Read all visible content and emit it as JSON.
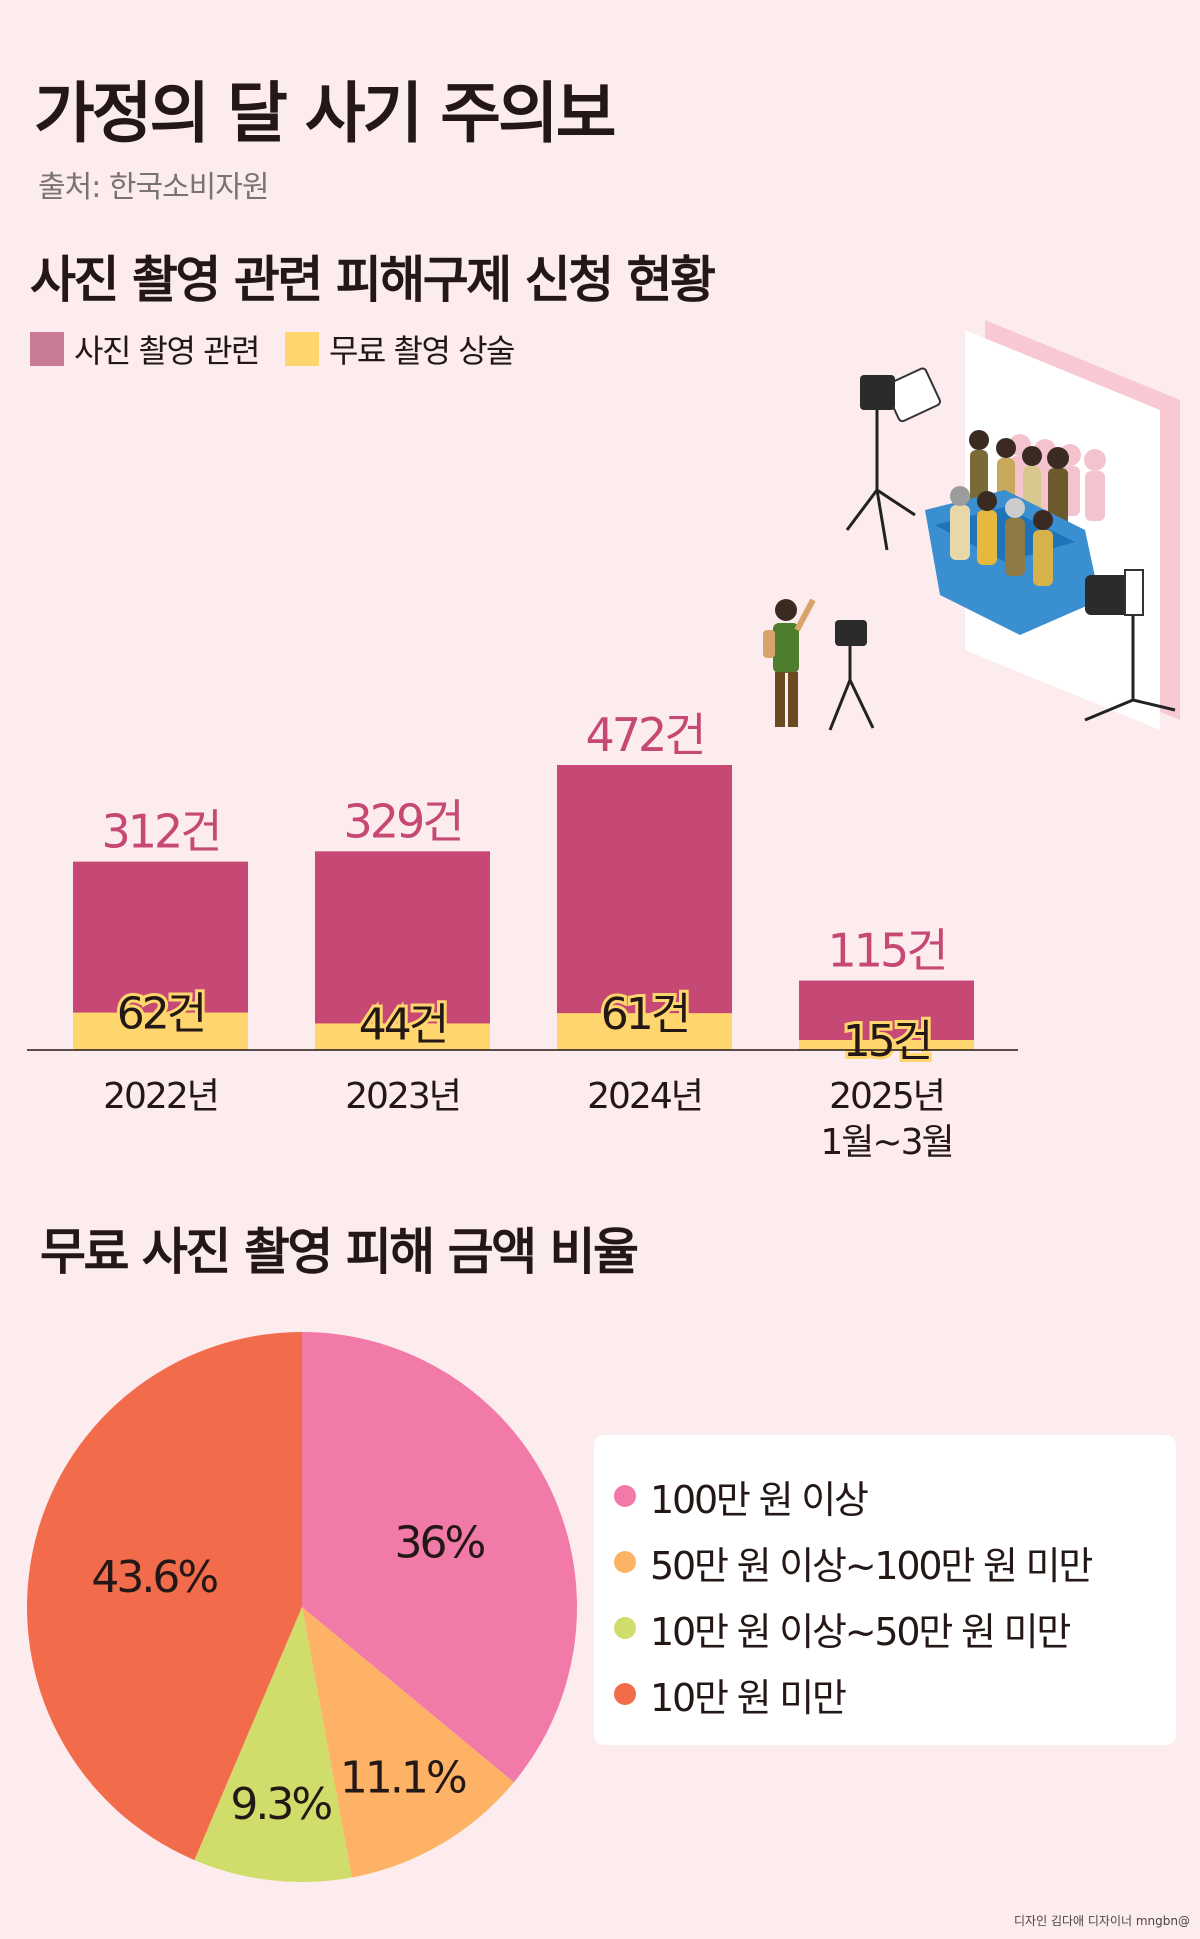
{
  "header": {
    "title": "가정의 달 사기 주의보",
    "source": "출처: 한국소비자원"
  },
  "bar_section": {
    "title": "사진 촬영 관련 피해구제 신청 현황"
  },
  "pie_section": {
    "title": "무료 사진 촬영 피해 금액 비율"
  },
  "credit": "디자인 김다애 디자이너 mngbn@",
  "colors": {
    "background": "#fdeced",
    "bar_total": "#c64874",
    "legend_total": "#c97b96",
    "bar_free": "#ffd56e",
    "pie_100_plus": "#f27aa9",
    "pie_50_100": "#fdb266",
    "pie_10_50": "#d1dd6a",
    "pie_under_10": "#f26b4b"
  },
  "chart_data": [
    {
      "type": "bar",
      "title": "사진 촬영 관련 피해구제 신청 현황",
      "categories": [
        [
          "2022년"
        ],
        [
          "2023년"
        ],
        [
          "2024년"
        ],
        [
          "2025년",
          "1월~3월"
        ]
      ],
      "series": [
        {
          "name": "사진 촬영 관련",
          "values": [
            312,
            329,
            472,
            115
          ],
          "labels": [
            "312건",
            "329건",
            "472건",
            "115건"
          ],
          "color": "#c64874",
          "legend_color": "#c97b96"
        },
        {
          "name": "무료 촬영 상술",
          "values": [
            62,
            44,
            61,
            15
          ],
          "labels": [
            "62건",
            "44건",
            "61건",
            "15건"
          ],
          "color": "#ffd56e"
        }
      ],
      "layout": "overlapping",
      "ylim": [
        0,
        472
      ],
      "grid": false,
      "legend_position": "top-left"
    },
    {
      "type": "pie",
      "title": "무료 사진 촬영 피해 금액 비율",
      "slices": [
        {
          "label": "100만 원 이상",
          "value": 36,
          "text": "36%",
          "color": "#f27aa9"
        },
        {
          "label": "50만 원 이상~100만 원 미만",
          "value": 11.1,
          "text": "11.1%",
          "color": "#fdb266"
        },
        {
          "label": "10만 원 이상~50만 원 미만",
          "value": 9.3,
          "text": "9.3%",
          "color": "#d1dd6a"
        },
        {
          "label": "10만 원 미만",
          "value": 43.6,
          "text": "43.6%",
          "color": "#f26b4b"
        }
      ],
      "legend_position": "right"
    }
  ]
}
